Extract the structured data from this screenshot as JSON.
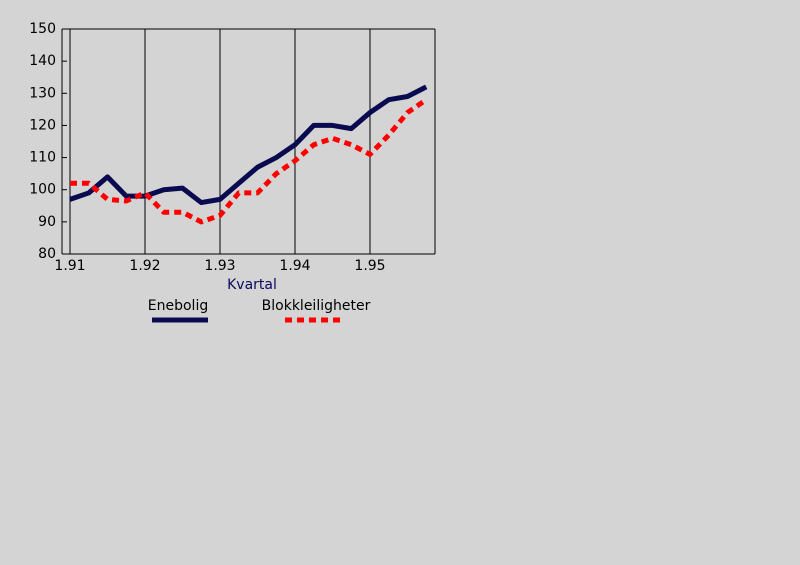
{
  "chart_data": {
    "type": "line",
    "x_label": "Kvartal",
    "categories": [
      "1.91",
      null,
      null,
      null,
      "1.92",
      null,
      null,
      null,
      "1.93",
      null,
      null,
      null,
      "1.94",
      null,
      null,
      null,
      "1.95",
      null,
      null,
      null
    ],
    "series": [
      {
        "name": "Enebolig",
        "color": "#0a0a50",
        "dash": false,
        "values": [
          97,
          99,
          104,
          98,
          98,
          100,
          100.5,
          96,
          97,
          102,
          107,
          110,
          114,
          120,
          120,
          119,
          124,
          128,
          129,
          132
        ]
      },
      {
        "name": "Blokkleiligheter",
        "color": "#ff0000",
        "dash": true,
        "values": [
          102,
          102,
          97,
          96.5,
          99,
          93,
          93,
          90,
          92,
          99,
          99,
          105,
          109,
          114,
          116,
          114,
          111,
          117,
          124,
          128
        ]
      }
    ],
    "ylim": [
      80,
      150
    ],
    "yticks": [
      80,
      90,
      100,
      110,
      120,
      130,
      140,
      150
    ],
    "grid": true
  }
}
